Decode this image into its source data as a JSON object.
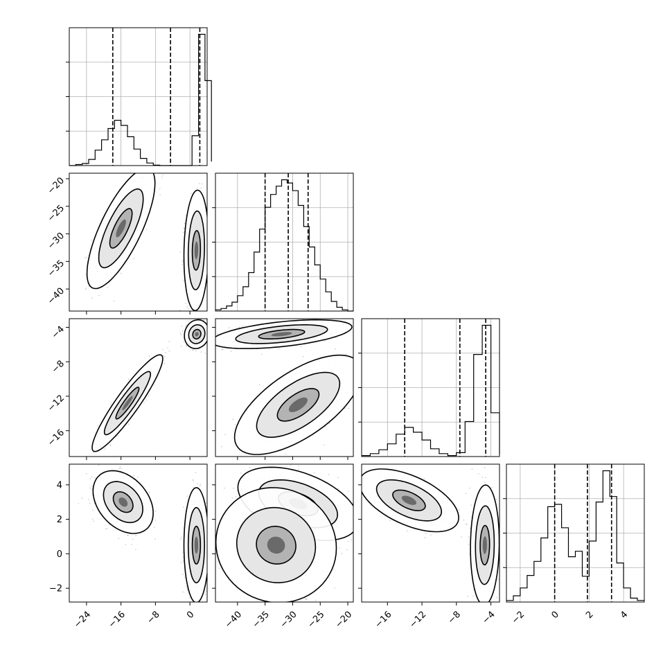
{
  "chart_data": {
    "type": "corner",
    "grid": true,
    "parameters": [
      {
        "index": 0,
        "range": [
          -28,
          4
        ],
        "ticks": [
          -24,
          -16,
          -8,
          0
        ],
        "tick_labels": [
          "−24",
          "−16",
          "−8",
          "0"
        ],
        "quantiles": [
          -17.9,
          -4.5,
          2.3
        ]
      },
      {
        "index": 1,
        "range": [
          -44,
          -19
        ],
        "ticks": [
          -40,
          -35,
          -30,
          -25,
          -20
        ],
        "tick_labels": [
          "−40",
          "−35",
          "−30",
          "−25",
          "−20"
        ],
        "quantiles": [
          -35.0,
          -30.8,
          -27.2
        ]
      },
      {
        "index": 2,
        "range": [
          -19,
          -3
        ],
        "ticks": [
          -16,
          -12,
          -8,
          -4
        ],
        "tick_labels": [
          "−16",
          "−12",
          "−8",
          "−4"
        ],
        "quantiles": [
          -14.0,
          -7.6,
          -4.6
        ]
      },
      {
        "index": 3,
        "range": [
          -2.8,
          5.2
        ],
        "ticks": [
          -2,
          0,
          2,
          4
        ],
        "tick_labels": [
          "−2",
          "0",
          "2",
          "4"
        ],
        "quantiles": [
          0.0,
          1.9,
          3.3
        ]
      }
    ],
    "histograms": [
      {
        "param": 0,
        "bin_edges": [
          -28,
          -26.5,
          -25,
          -23.5,
          -22,
          -20.5,
          -19,
          -17.5,
          -16,
          -14.5,
          -13,
          -11.5,
          -10,
          -8.5,
          -7,
          -5.5,
          -4,
          -2.5,
          -1,
          0.5,
          2,
          3.5,
          5
        ],
        "counts": [
          0,
          2,
          4,
          12,
          30,
          50,
          72,
          88,
          78,
          56,
          32,
          14,
          5,
          1,
          0,
          0,
          0,
          0,
          0,
          58,
          255,
          165,
          8
        ]
      },
      {
        "param": 1,
        "bin_edges": [
          -44,
          -43,
          -42,
          -41,
          -40,
          -39,
          -38,
          -37,
          -36,
          -35,
          -34,
          -33,
          -32,
          -31,
          -30,
          -29,
          -28,
          -27,
          -26,
          -25,
          -24,
          -23,
          -22,
          -21,
          -20,
          -19
        ],
        "counts": [
          2,
          4,
          8,
          14,
          24,
          38,
          60,
          92,
          128,
          162,
          182,
          195,
          205,
          200,
          188,
          165,
          132,
          100,
          72,
          50,
          30,
          15,
          6,
          2,
          0
        ]
      },
      {
        "param": 2,
        "bin_edges": [
          -19,
          -18,
          -17,
          -16,
          -15,
          -14,
          -13,
          -12,
          -11,
          -10,
          -9,
          -8,
          -7,
          -6,
          -5,
          -4,
          -3
        ],
        "counts": [
          2,
          6,
          14,
          26,
          46,
          60,
          50,
          34,
          16,
          6,
          2,
          8,
          72,
          210,
          270,
          90,
          5
        ]
      },
      {
        "param": 3,
        "bin_edges": [
          -2.8,
          -2.4,
          -2,
          -1.6,
          -1.2,
          -0.8,
          -0.4,
          0,
          0.4,
          0.8,
          1.2,
          1.6,
          2,
          2.4,
          2.8,
          3.2,
          3.6,
          4,
          4.4,
          4.8,
          5.2
        ],
        "counts": [
          2,
          8,
          18,
          34,
          52,
          82,
          122,
          125,
          95,
          58,
          65,
          33,
          78,
          128,
          168,
          135,
          50,
          18,
          5,
          2
        ]
      }
    ],
    "contour_panels": [
      {
        "x_param": 0,
        "y_param": 1,
        "modes": [
          {
            "center": [
              -16,
              -29
            ],
            "sd": [
              2.6,
              3.6
            ],
            "rho": 0.75,
            "weight": 0.45
          },
          {
            "center": [
              1.5,
              -33
            ],
            "sd": [
              0.95,
              3.6
            ],
            "rho": 0.1,
            "weight": 0.55
          }
        ]
      },
      {
        "x_param": 0,
        "y_param": 2,
        "modes": [
          {
            "center": [
              -14.5,
              -12.8
            ],
            "sd": [
              2.7,
              1.85
            ],
            "rho": 0.92,
            "weight": 0.45
          },
          {
            "center": [
              1.6,
              -4.8
            ],
            "sd": [
              0.95,
              0.55
            ],
            "rho": 0.1,
            "weight": 0.55
          }
        ]
      },
      {
        "x_param": 0,
        "y_param": 3,
        "modes": [
          {
            "center": [
              -15.5,
              3.0
            ],
            "sd": [
              2.3,
              0.6
            ],
            "rho": -0.35,
            "weight": 0.45
          },
          {
            "center": [
              1.5,
              0.5
            ],
            "sd": [
              0.95,
              1.1
            ],
            "rho": 0.0,
            "weight": 0.55
          }
        ]
      },
      {
        "x_param": 1,
        "y_param": 2,
        "modes": [
          {
            "center": [
              -32,
              -4.8
            ],
            "sd": [
              4.2,
              0.55
            ],
            "rho": 0.5,
            "weight": 0.55
          },
          {
            "center": [
              -29,
              -13
            ],
            "sd": [
              3.8,
              1.9
            ],
            "rho": 0.65,
            "weight": 0.45
          }
        ]
      },
      {
        "x_param": 1,
        "y_param": 3,
        "modes": [
          {
            "center": [
              -29,
              2.9
            ],
            "sd": [
              3.6,
              0.7
            ],
            "rho": -0.45,
            "weight": 0.55
          },
          {
            "center": [
              -33,
              0.5
            ],
            "sd": [
              3.6,
              1.1
            ],
            "rho": -0.05,
            "weight": 0.45
          }
        ]
      },
      {
        "x_param": 2,
        "y_param": 3,
        "modes": [
          {
            "center": [
              -13.5,
              3.1
            ],
            "sd": [
              1.9,
              0.6
            ],
            "rho": -0.55,
            "weight": 0.45
          },
          {
            "center": [
              -4.7,
              0.5
            ],
            "sd": [
              0.55,
              1.15
            ],
            "rho": 0.05,
            "weight": 0.55
          }
        ]
      }
    ],
    "contour_levels": [
      0.39,
      0.86,
      0.99
    ],
    "colors": {
      "line": "#000000",
      "grid": "#b0b0b0",
      "points": "#000000"
    }
  }
}
